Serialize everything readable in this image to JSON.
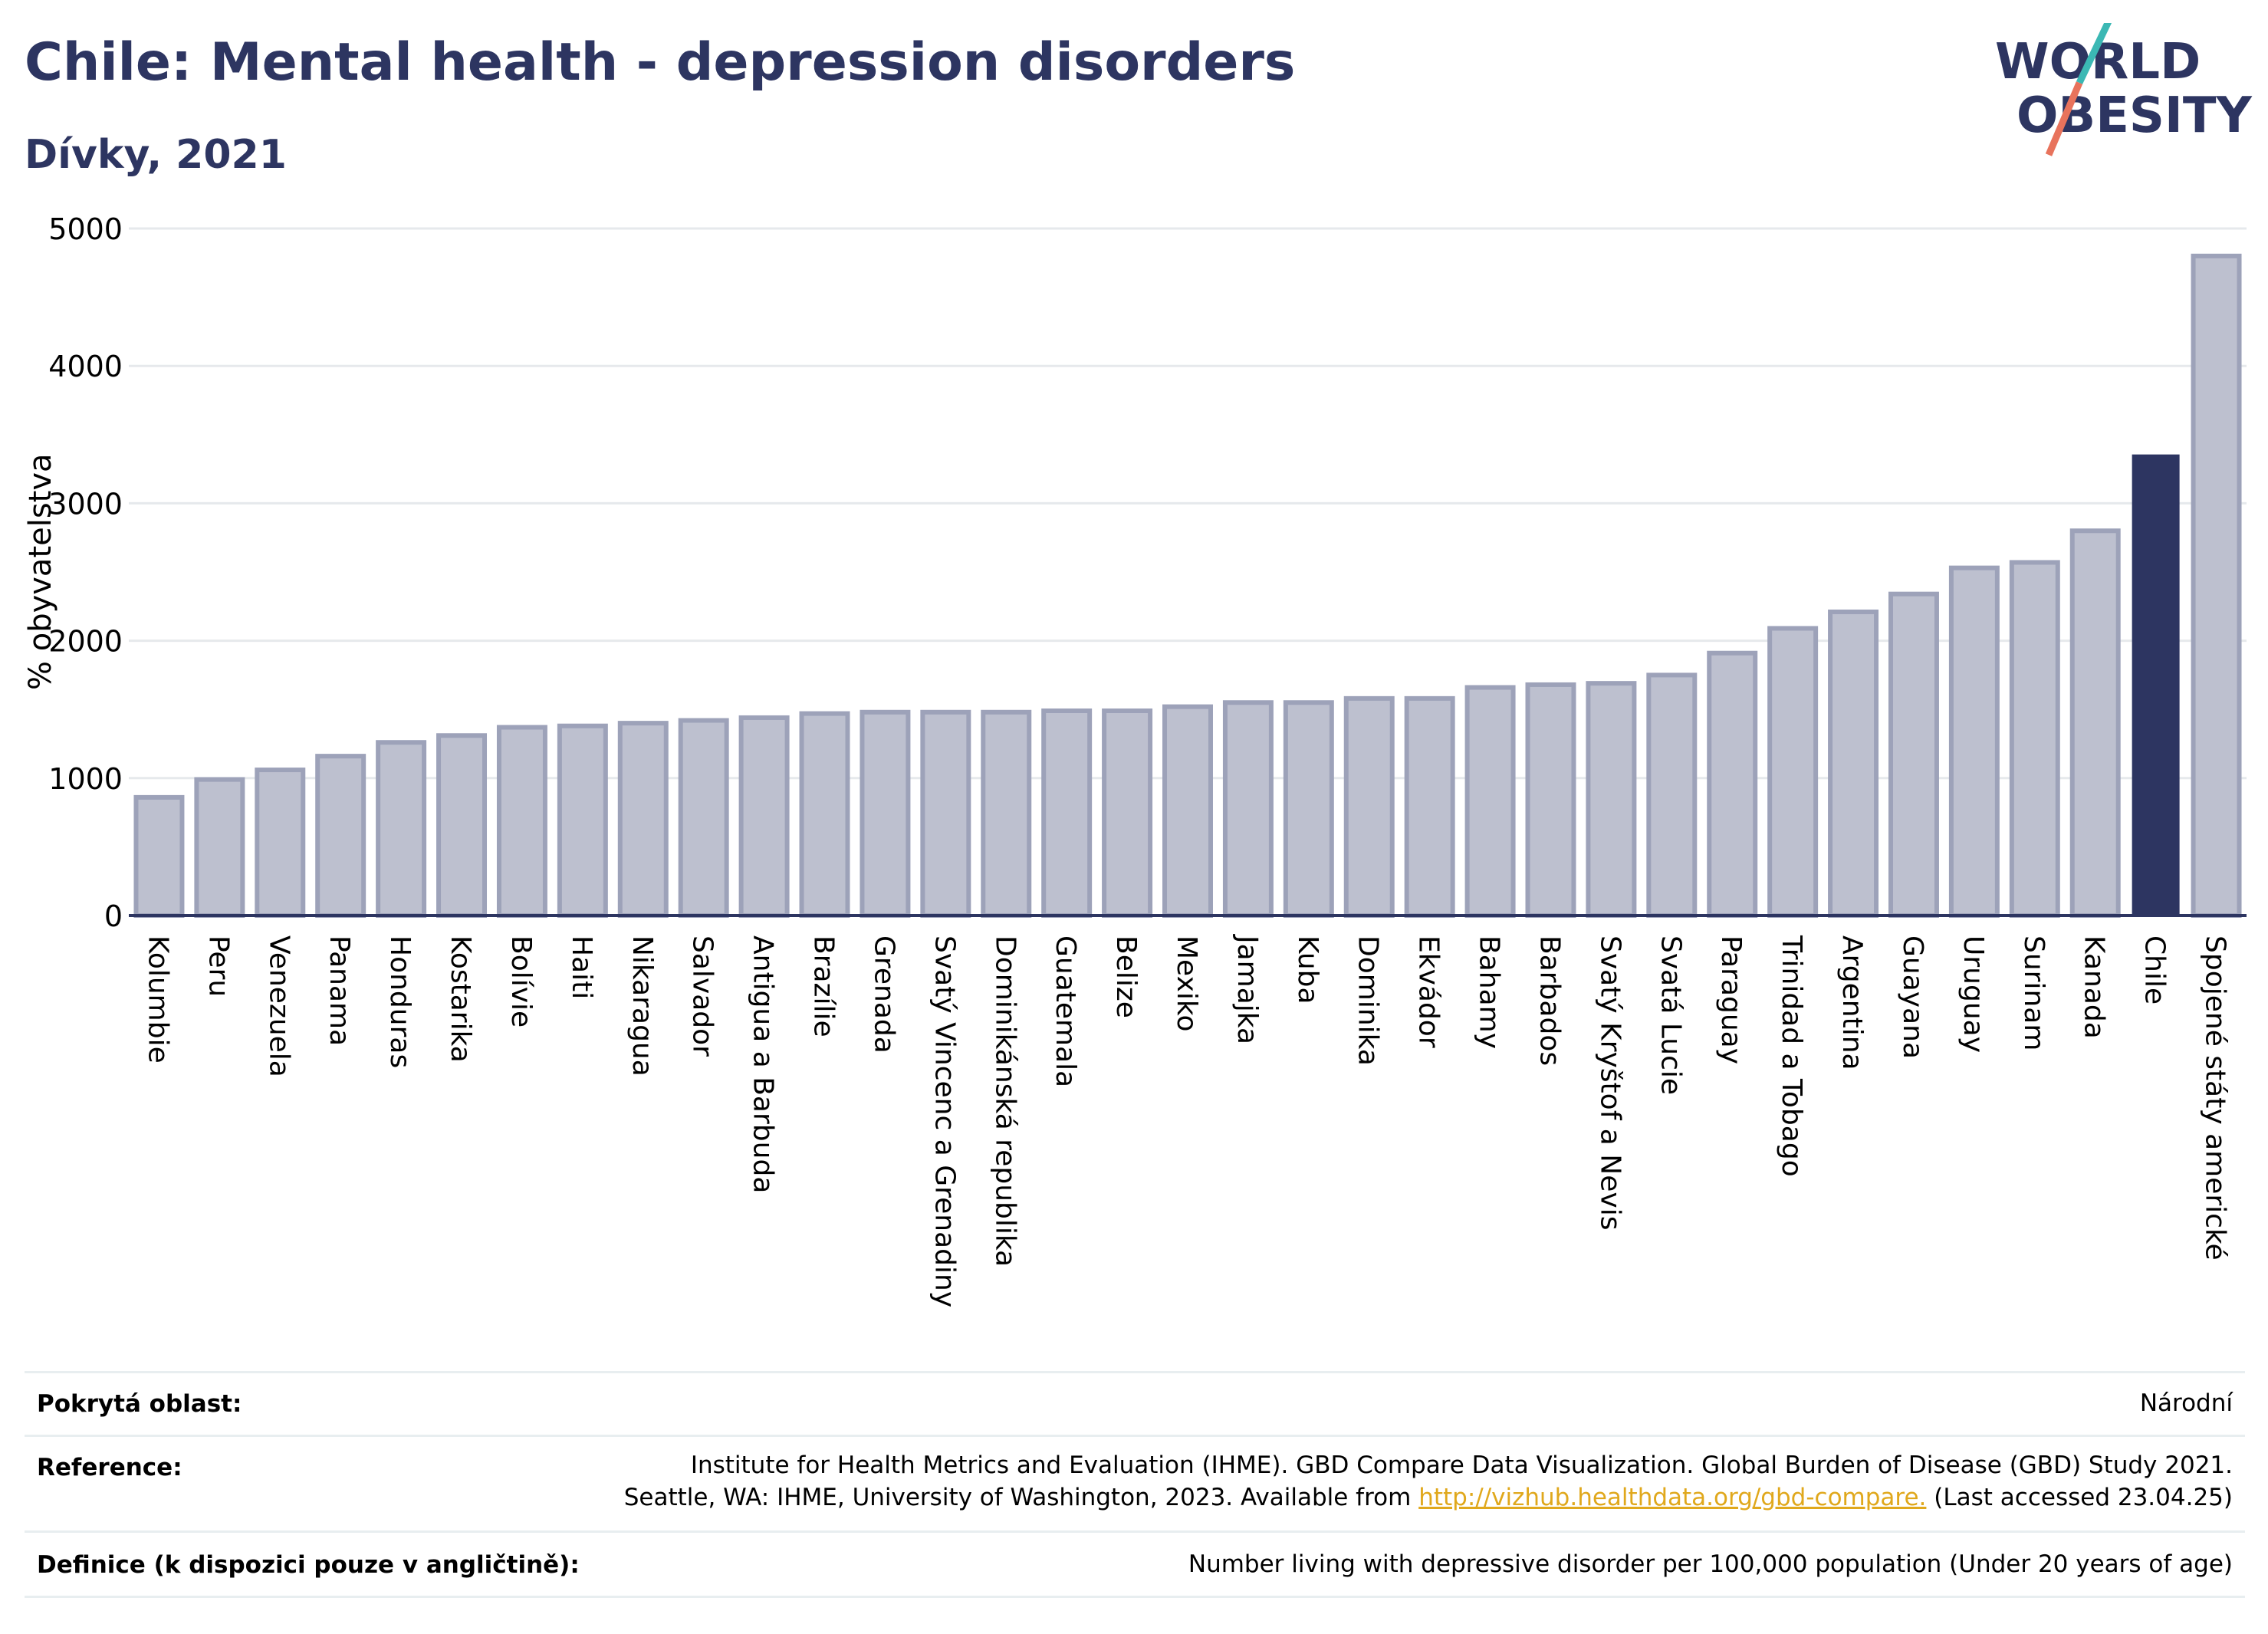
{
  "header": {
    "title": "Chile: Mental health - depression disorders",
    "subtitle": "Dívky, 2021",
    "logo_line1": "WORLD",
    "logo_line2": "OBESITY"
  },
  "colors": {
    "title": "#2d3561",
    "bar_default_fill": "#bdc0cf",
    "bar_default_stroke": "#9da2b9",
    "bar_highlight": "#2d3561",
    "grid": "#e6e9ec",
    "link": "#e0a81c",
    "logo_teal": "#3bb8b4",
    "logo_coral": "#e8735c"
  },
  "chart_data": {
    "type": "bar",
    "ylabel": "% obyvatelstva",
    "ylim": [
      0,
      5000
    ],
    "yticks": [
      0,
      1000,
      2000,
      3000,
      4000,
      5000
    ],
    "grid": true,
    "highlight": "Chile",
    "categories": [
      "Kolumbie",
      "Peru",
      "Venezuela",
      "Panama",
      "Honduras",
      "Kostarika",
      "Bolívie",
      "Haiti",
      "Nikaragua",
      "Salvador",
      "Antigua a Barbuda",
      "Brazílie",
      "Grenada",
      "Svatý Vincenc a Grenadiny",
      "Dominikánská republika",
      "Guatemala",
      "Belize",
      "Mexiko",
      "Jamajka",
      "Kuba",
      "Dominika",
      "Ekvádor",
      "Bahamy",
      "Barbados",
      "Svatý Kryštof a Nevis",
      "Svatá Lucie",
      "Paraguay",
      "Trinidad a Tobago",
      "Argentina",
      "Guayana",
      "Uruguay",
      "Surinam",
      "Kanada",
      "Chile",
      "Spojené státy americké"
    ],
    "values": [
      860,
      990,
      1060,
      1160,
      1260,
      1310,
      1370,
      1380,
      1400,
      1420,
      1440,
      1470,
      1480,
      1480,
      1480,
      1490,
      1490,
      1520,
      1550,
      1550,
      1580,
      1580,
      1660,
      1680,
      1690,
      1750,
      1910,
      2090,
      2210,
      2340,
      2530,
      2570,
      2800,
      3350,
      4800
    ]
  },
  "footer": {
    "coverage_label": "Pokrytá oblast:",
    "coverage_value": "Národní",
    "reference_label": "Reference:",
    "reference_line1": "Institute for Health Metrics and Evaluation (IHME). GBD Compare Data Visualization. Global Burden of Disease (GBD) Study 2021.",
    "reference_line2_pre": "Seattle, WA: IHME, University of Washington, 2023. Available from ",
    "reference_link": "http://vizhub.healthdata.org/gbd-compare.",
    "reference_line2_post": " (Last accessed 23.04.25)",
    "definition_label": "Definice (k dispozici pouze v angličtině):",
    "definition_value": "Number living with depressive disorder per 100,000 population (Under 20 years of age)"
  }
}
